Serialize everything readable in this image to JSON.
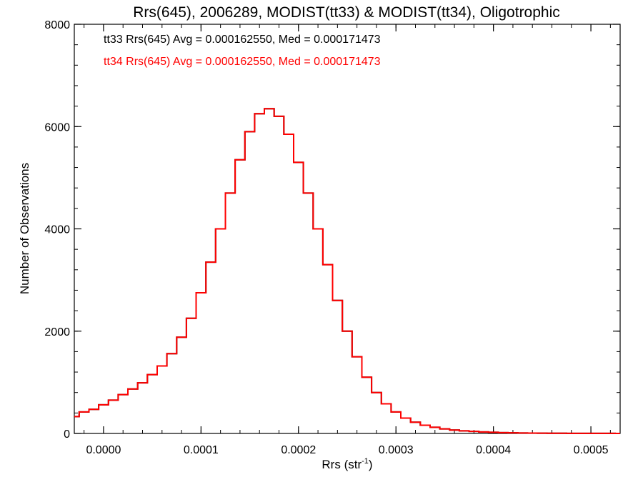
{
  "chart_data": {
    "type": "line",
    "style": "histogram-step",
    "title": "Rrs(645), 2006289, MODIST(tt33) & MODIST(tt34), Oligotrophic",
    "xlabel_base": "Rrs (str",
    "xlabel_exp": "-1",
    "xlabel_close": ")",
    "ylabel": "Number of Observations",
    "xlim": [
      -3e-05,
      0.00053
    ],
    "ylim": [
      0,
      8000
    ],
    "x_ticks": [
      0.0,
      0.0001,
      0.0002,
      0.0003,
      0.0004,
      0.0005
    ],
    "x_tick_labels": [
      "0.0000",
      "0.0001",
      "0.0002",
      "0.0003",
      "0.0004",
      "0.0005"
    ],
    "y_ticks": [
      0,
      2000,
      4000,
      6000,
      8000
    ],
    "y_tick_labels": [
      "0",
      "2000",
      "4000",
      "6000",
      "8000"
    ],
    "legend_position": "top-left",
    "x": [
      -3e-05,
      -2e-05,
      -1e-05,
      0.0,
      1e-05,
      2e-05,
      3e-05,
      4e-05,
      5e-05,
      6e-05,
      7e-05,
      8e-05,
      9e-05,
      0.0001,
      0.00011,
      0.00012,
      0.00013,
      0.00014,
      0.00015,
      0.00016,
      0.00017,
      0.00018,
      0.00019,
      0.0002,
      0.00021,
      0.00022,
      0.00023,
      0.00024,
      0.00025,
      0.00026,
      0.00027,
      0.00028,
      0.00029,
      0.0003,
      0.00031,
      0.00032,
      0.00033,
      0.00034,
      0.00035,
      0.00036,
      0.00037,
      0.00038,
      0.00039,
      0.0004,
      0.00041,
      0.00042,
      0.00043,
      0.00044,
      0.00045,
      0.00046,
      0.00047,
      0.00048,
      0.00049,
      0.0005,
      0.00051,
      0.00052,
      0.00053
    ],
    "series": [
      {
        "name": "tt33",
        "color": "#000000",
        "label": "tt33 Rrs(645) Avg = 0.000162550, Med = 0.000171473",
        "values": [
          330,
          420,
          470,
          560,
          650,
          760,
          870,
          990,
          1150,
          1320,
          1560,
          1880,
          2250,
          2750,
          3350,
          4000,
          4700,
          5350,
          5900,
          6250,
          6350,
          6200,
          5850,
          5300,
          4700,
          4000,
          3300,
          2600,
          2000,
          1500,
          1100,
          800,
          580,
          420,
          300,
          220,
          160,
          120,
          90,
          65,
          50,
          40,
          30,
          22,
          16,
          12,
          9,
          7,
          5,
          4,
          3,
          2,
          2,
          1,
          1,
          1,
          0
        ]
      },
      {
        "name": "tt34",
        "color": "#ff0000",
        "label": "tt34 Rrs(645) Avg = 0.000162550, Med = 0.000171473",
        "values": [
          330,
          420,
          470,
          560,
          650,
          760,
          870,
          990,
          1150,
          1320,
          1560,
          1880,
          2250,
          2750,
          3350,
          4000,
          4700,
          5350,
          5900,
          6250,
          6350,
          6200,
          5850,
          5300,
          4700,
          4000,
          3300,
          2600,
          2000,
          1500,
          1100,
          800,
          580,
          420,
          300,
          220,
          160,
          120,
          90,
          65,
          50,
          40,
          30,
          22,
          16,
          12,
          9,
          7,
          5,
          4,
          3,
          2,
          2,
          1,
          1,
          1,
          0
        ]
      }
    ]
  }
}
